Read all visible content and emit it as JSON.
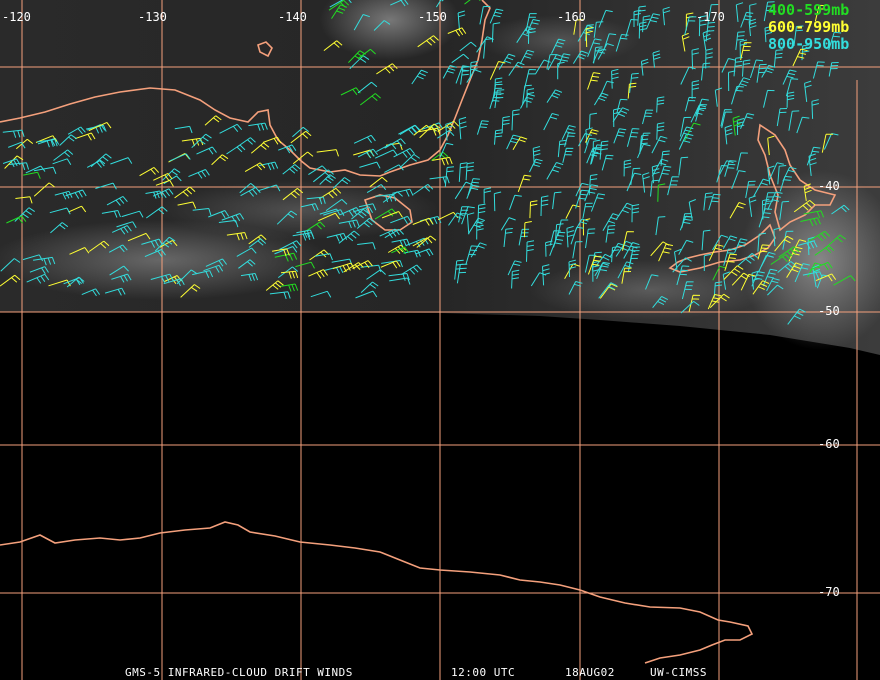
{
  "map": {
    "longitude_labels": [
      "-120",
      "-130",
      "-140",
      "-150",
      "-160",
      "-170"
    ],
    "latitude_labels": [
      "-40",
      "-50",
      "-60",
      "-70"
    ],
    "legend": [
      {
        "label": "400-599mb",
        "color": "#22dd22"
      },
      {
        "label": "600-799mb",
        "color": "#ffff33"
      },
      {
        "label": "800-950mb",
        "color": "#33dddd"
      }
    ],
    "footer": {
      "product": "GMS-5 INFRARED-CLOUD DRIFT WINDS",
      "time": "12:00 UTC",
      "date": "18AUG02",
      "source": "UW-CIMSS"
    },
    "colors": {
      "coastline": "#f4a07c",
      "gridline": "#f4a07c",
      "background": "#000000",
      "cloud_imagery": "#3a3a3a"
    },
    "wind_barb_layers": [
      "400-599mb",
      "600-799mb",
      "800-950mb"
    ]
  }
}
